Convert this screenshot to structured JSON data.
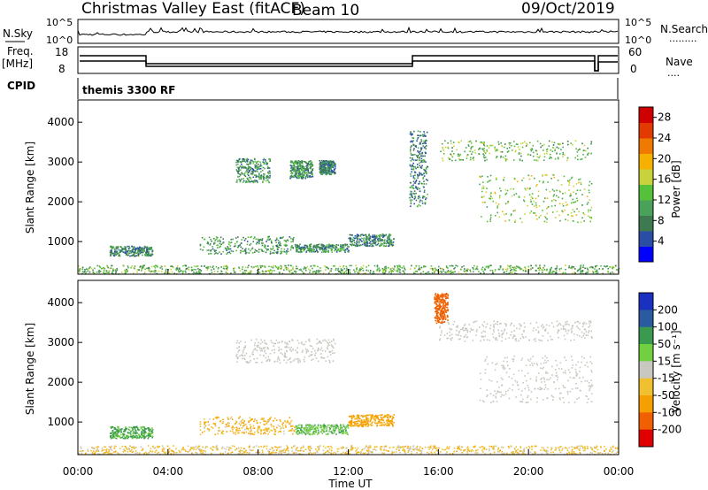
{
  "header": {
    "station": "Christmas Valley East (fitACF)",
    "beam": "Beam 10",
    "date": "09/Oct/2019"
  },
  "status_panels": {
    "nsky_label": "N.Sky",
    "nsky_ticks": [
      "10^5",
      "10^0"
    ],
    "nsearch_label": "N.Search",
    "nsearch_ticks_right": [
      "10^5",
      "10^0"
    ],
    "freq_label": "Freq.",
    "freq_unit": "[MHz]",
    "freq_ticks": [
      "18",
      "8"
    ],
    "nave_label": "Nave",
    "nave_ticks": [
      "60",
      "0"
    ],
    "cpid_label": "CPID",
    "cpid_value": "themis 3300 RF"
  },
  "colors": {
    "power_scale": [
      "#0000ff",
      "#2a4ea6",
      "#3d7a50",
      "#4aa15a",
      "#55c03a",
      "#c8d23a",
      "#f5b000",
      "#f07a00",
      "#e23a00",
      "#d00000"
    ],
    "velocity_scale": [
      "#e00000",
      "#f06000",
      "#f5a000",
      "#f0c030",
      "#c8c8c0",
      "#70d040",
      "#3a9a50",
      "#2a5aa0",
      "#1a30c0"
    ],
    "ground_scatter": "#c8c8c0"
  },
  "chart_data": [
    {
      "type": "heatmap",
      "name": "power",
      "ylabel": "Slant Range [km]",
      "xlabel": "Time UT",
      "x_ticks": [
        "00:00",
        "04:00",
        "08:00",
        "12:00",
        "16:00",
        "20:00",
        "00:00"
      ],
      "xlim_hours": [
        0,
        24
      ],
      "y_ticks": [
        1000,
        2000,
        3000,
        4000
      ],
      "ylim": [
        180,
        4560
      ],
      "colorbar_label": "Power [dB]",
      "colorbar_ticks": [
        4,
        8,
        12,
        16,
        20,
        24,
        28
      ],
      "colorbar_range": [
        0,
        30
      ],
      "features": [
        {
          "t": [
            1.4,
            3.3
          ],
          "r": [
            650,
            900
          ],
          "level": 8
        },
        {
          "t": [
            5.4,
            9.6
          ],
          "r": [
            700,
            1150
          ],
          "level": 10
        },
        {
          "t": [
            9.6,
            12.0
          ],
          "r": [
            750,
            950
          ],
          "level": 9
        },
        {
          "t": [
            12.0,
            14.0
          ],
          "r": [
            900,
            1200
          ],
          "level": 8
        },
        {
          "t": [
            7.0,
            8.5
          ],
          "r": [
            2500,
            3100
          ],
          "level": 9
        },
        {
          "t": [
            9.4,
            10.4
          ],
          "r": [
            2600,
            3050
          ],
          "level": 9
        },
        {
          "t": [
            10.7,
            11.4
          ],
          "r": [
            2700,
            3050
          ],
          "level": 8
        },
        {
          "t": [
            16.0,
            22.8
          ],
          "r": [
            3050,
            3550
          ],
          "level": 13
        },
        {
          "t": [
            17.8,
            22.8
          ],
          "r": [
            1500,
            2700
          ],
          "level": 14
        },
        {
          "t": [
            14.7,
            15.5
          ],
          "r": [
            1900,
            3800
          ],
          "level": 8
        },
        {
          "t": [
            0.0,
            24.0
          ],
          "r": [
            200,
            420
          ],
          "level": 12
        }
      ]
    },
    {
      "type": "heatmap",
      "name": "velocity",
      "ylabel": "Slant Range [km]",
      "xlabel": "Time UT",
      "x_ticks": [
        "00:00",
        "04:00",
        "08:00",
        "12:00",
        "16:00",
        "20:00",
        "00:00"
      ],
      "xlim_hours": [
        0,
        24
      ],
      "y_ticks": [
        1000,
        2000,
        3000,
        4000
      ],
      "ylim": [
        180,
        4560
      ],
      "colorbar_label": "Velocity [m s⁻¹]",
      "colorbar_ticks": [
        200,
        100,
        50,
        15,
        -15,
        -50,
        -100,
        -200
      ],
      "features": [
        {
          "t": [
            1.4,
            3.3
          ],
          "r": [
            600,
            900
          ],
          "vel": 60
        },
        {
          "t": [
            5.4,
            9.6
          ],
          "r": [
            700,
            1150
          ],
          "vel": -40
        },
        {
          "t": [
            9.6,
            12.0
          ],
          "r": [
            700,
            950
          ],
          "vel": 40
        },
        {
          "t": [
            12.0,
            14.0
          ],
          "r": [
            900,
            1200
          ],
          "vel": -70
        },
        {
          "t": [
            7.0,
            11.4
          ],
          "r": [
            2500,
            3100
          ],
          "vel": 0
        },
        {
          "t": [
            16.0,
            22.8
          ],
          "r": [
            3050,
            3550
          ],
          "vel": 0
        },
        {
          "t": [
            17.8,
            22.8
          ],
          "r": [
            1500,
            2700
          ],
          "vel": 0
        },
        {
          "t": [
            15.8,
            16.4
          ],
          "r": [
            3500,
            4250
          ],
          "vel": -150
        },
        {
          "t": [
            0.0,
            24.0
          ],
          "r": [
            200,
            420
          ],
          "vel": -30
        }
      ]
    }
  ]
}
